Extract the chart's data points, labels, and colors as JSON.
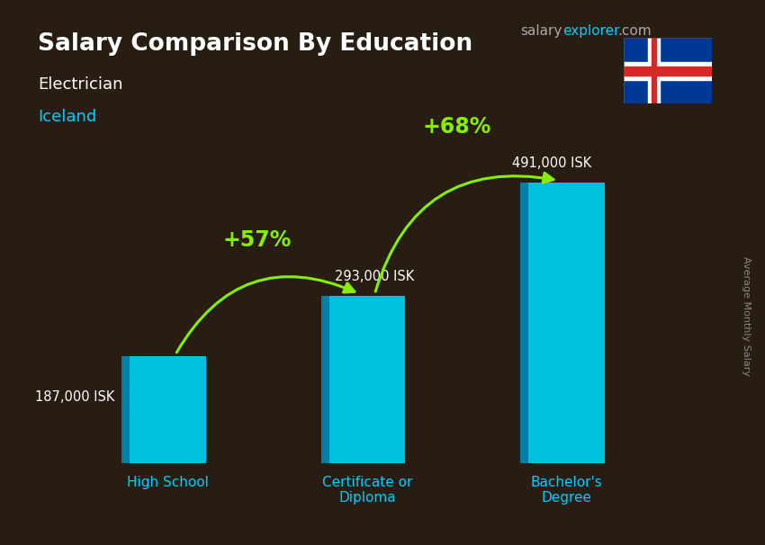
{
  "title": "Salary Comparison By Education",
  "subtitle_job": "Electrician",
  "subtitle_country": "Iceland",
  "categories": [
    "High School",
    "Certificate or\nDiploma",
    "Bachelor's\nDegree"
  ],
  "values": [
    187000,
    293000,
    491000
  ],
  "labels": [
    "187,000 ISK",
    "293,000 ISK",
    "491,000 ISK"
  ],
  "bar_face_color": "#00bfdf",
  "bar_left_color": "#007fa8",
  "bar_top_color": "#00d4f5",
  "arrows": [
    {
      "from": 0,
      "to": 1,
      "label": "+57%",
      "rad": -0.45
    },
    {
      "from": 1,
      "to": 2,
      "label": "+68%",
      "rad": -0.45
    }
  ],
  "arrow_color": "#88ee00",
  "arrow_label_color": "#88ee00",
  "background_color": "#1a1a2e",
  "title_color": "#ffffff",
  "subtitle_job_color": "#ffffff",
  "subtitle_country_color": "#00cfff",
  "label_color": "#ffffff",
  "category_color": "#00cfff",
  "ylabel_text": "Average Monthly Salary",
  "brand_salary_color": "#aaaaaa",
  "brand_explorer_color": "#00cfff",
  "brand_com_color": "#aaaaaa",
  "ylim": [
    0,
    600000
  ],
  "fig_width": 8.5,
  "fig_height": 6.06,
  "dpi": 100
}
